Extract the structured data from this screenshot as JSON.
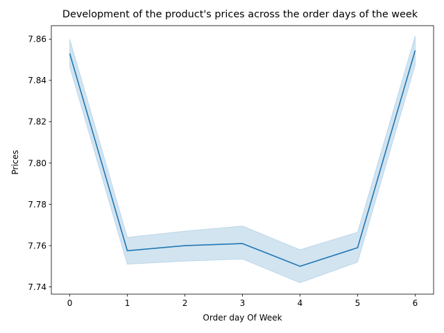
{
  "chart_data": {
    "type": "line",
    "title": "Development of the product's prices across the order days of the week",
    "xlabel": "Order day Of Week",
    "ylabel": "Prices",
    "x": [
      0,
      1,
      2,
      3,
      4,
      5,
      6
    ],
    "series": [
      {
        "values": [
          7.853,
          7.7575,
          7.76,
          7.761,
          7.75,
          7.759,
          7.8545
        ],
        "lower": [
          7.8465,
          7.751,
          7.7525,
          7.7535,
          7.742,
          7.752,
          7.8475
        ],
        "upper": [
          7.86,
          7.764,
          7.767,
          7.7695,
          7.758,
          7.7665,
          7.8615
        ]
      }
    ],
    "xlim": [
      -0.32,
      6.32
    ],
    "ylim": [
      7.7365,
      7.8665
    ],
    "xticks": [
      0,
      1,
      2,
      3,
      4,
      5,
      6
    ],
    "xtick_labels": [
      "0",
      "1",
      "2",
      "3",
      "4",
      "5",
      "6"
    ],
    "yticks": [
      7.74,
      7.76,
      7.78,
      7.8,
      7.82,
      7.84,
      7.86
    ],
    "ytick_labels": [
      "7.74",
      "7.76",
      "7.78",
      "7.80",
      "7.82",
      "7.84",
      "7.86"
    ],
    "grid": false,
    "line_color": "#1f77b4",
    "band_color": "#1f77b4"
  }
}
